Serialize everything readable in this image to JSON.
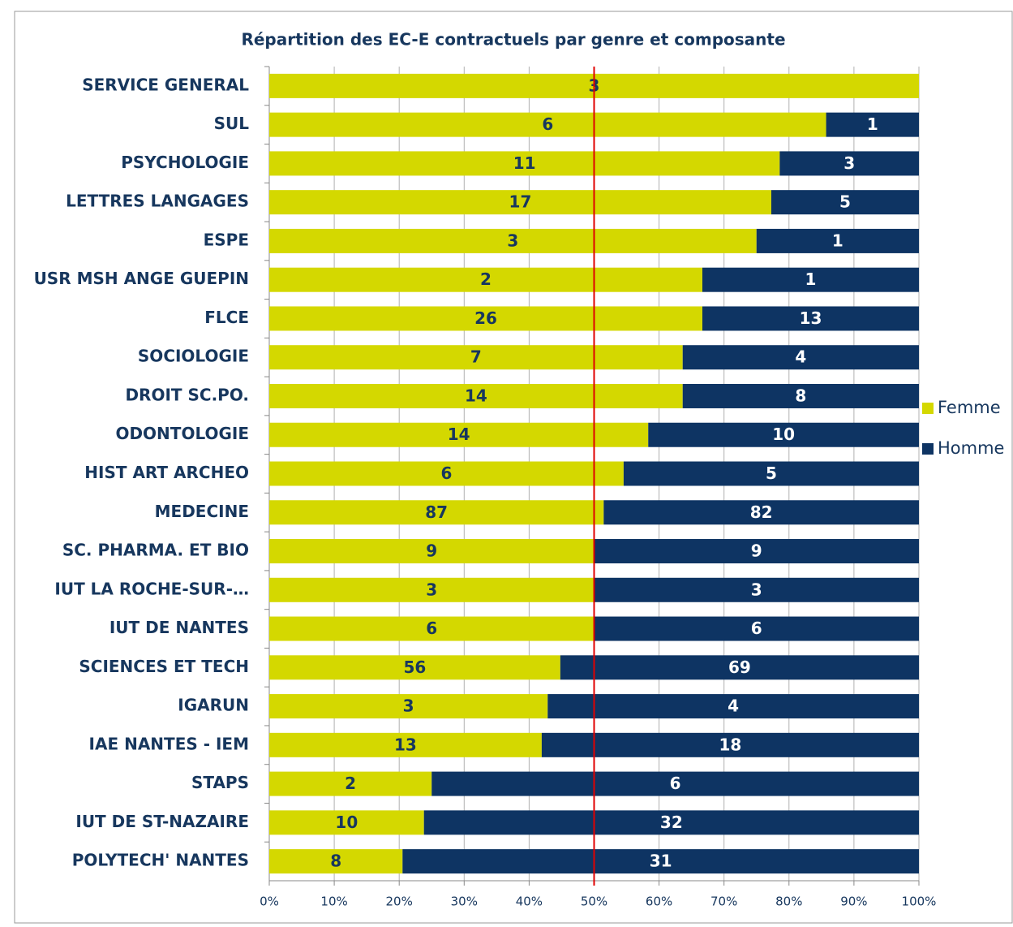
{
  "chart_data": {
    "type": "bar",
    "orientation": "horizontal",
    "stacked": "percent",
    "title": "Répartition des EC-E contractuels par genre et composante",
    "categories": [
      "SERVICE GENERAL",
      "SUL",
      "PSYCHOLOGIE",
      "LETTRES LANGAGES",
      "ESPE",
      "USR MSH ANGE GUEPIN",
      "FLCE",
      "SOCIOLOGIE",
      "DROIT SC.PO.",
      "ODONTOLOGIE",
      "HIST ART ARCHEO",
      "MEDECINE",
      "SC. PHARMA. ET BIO",
      "IUT LA ROCHE-SUR-…",
      "IUT DE NANTES",
      "SCIENCES ET TECH",
      "IGARUN",
      "IAE NANTES - IEM",
      "STAPS",
      "IUT DE ST-NAZAIRE",
      "POLYTECH' NANTES"
    ],
    "series": [
      {
        "name": "Femme",
        "color": "#d4d800",
        "values": [
          3,
          6,
          11,
          17,
          3,
          2,
          26,
          7,
          14,
          14,
          6,
          87,
          9,
          3,
          6,
          56,
          3,
          13,
          2,
          10,
          8
        ]
      },
      {
        "name": "Homme",
        "color": "#0e3463",
        "values": [
          0,
          1,
          3,
          5,
          1,
          1,
          13,
          4,
          8,
          10,
          5,
          82,
          9,
          3,
          6,
          69,
          4,
          18,
          6,
          32,
          31
        ]
      }
    ],
    "xlim": [
      0,
      100
    ],
    "xticks": [
      {
        "value": 0,
        "label": "0%"
      },
      {
        "value": 10,
        "label": "10%"
      },
      {
        "value": 20,
        "label": "20%"
      },
      {
        "value": 30,
        "label": "30%"
      },
      {
        "value": 40,
        "label": "40%"
      },
      {
        "value": 50,
        "label": "50%"
      },
      {
        "value": 60,
        "label": "60%"
      },
      {
        "value": 70,
        "label": "70%"
      },
      {
        "value": 80,
        "label": "80%"
      },
      {
        "value": 90,
        "label": "90%"
      },
      {
        "value": 100,
        "label": "100%"
      }
    ],
    "grid": true,
    "legend": "right",
    "reference_line": 50,
    "reference_color": "#e00000"
  }
}
